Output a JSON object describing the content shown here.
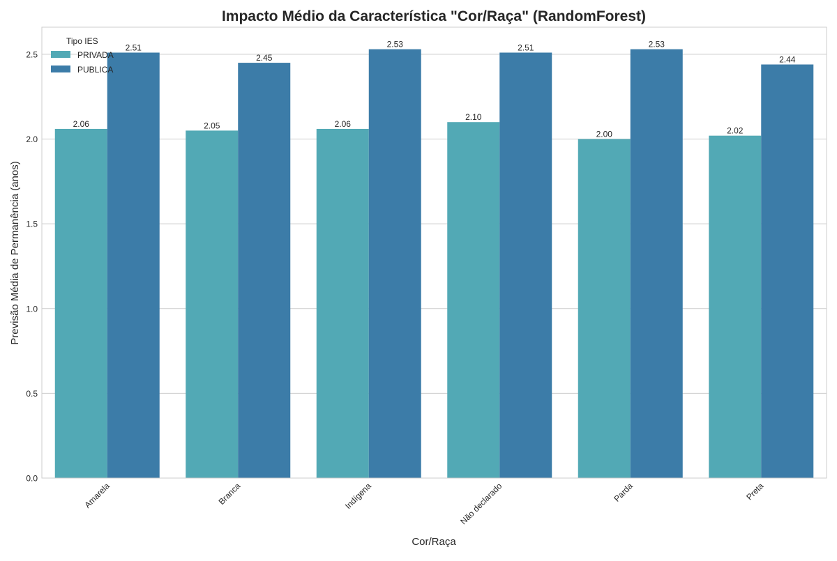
{
  "chart_data": {
    "type": "bar",
    "title": "Impacto Médio da Característica \"Cor/Raça\" (RandomForest)",
    "xlabel": "Cor/Raça",
    "ylabel": "Previsão Média de Permanência (anos)",
    "categories": [
      "Amarela",
      "Branca",
      "Indígena",
      "Não declarado",
      "Parda",
      "Preta"
    ],
    "series": [
      {
        "name": "PRIVADA",
        "color": "#52a9b5",
        "values": [
          2.06,
          2.05,
          2.06,
          2.1,
          2.0,
          2.02
        ],
        "labels": [
          "2.06",
          "2.05",
          "2.06",
          "2.10",
          "2.00",
          "2.02"
        ]
      },
      {
        "name": "PUBLICA",
        "color": "#3c7ca8",
        "values": [
          2.51,
          2.45,
          2.53,
          2.51,
          2.53,
          2.44
        ],
        "labels": [
          "2.51",
          "2.45",
          "2.53",
          "2.51",
          "2.53",
          "2.44"
        ]
      }
    ],
    "ylim": [
      0,
      2.66
    ],
    "yticks": [
      0.0,
      0.5,
      1.0,
      1.5,
      2.0,
      2.5
    ],
    "ytick_labels": [
      "0.0",
      "0.5",
      "1.0",
      "1.5",
      "2.0",
      "2.5"
    ],
    "grid": true,
    "legend": {
      "title": "Tipo IES",
      "placement": "top-left"
    }
  }
}
